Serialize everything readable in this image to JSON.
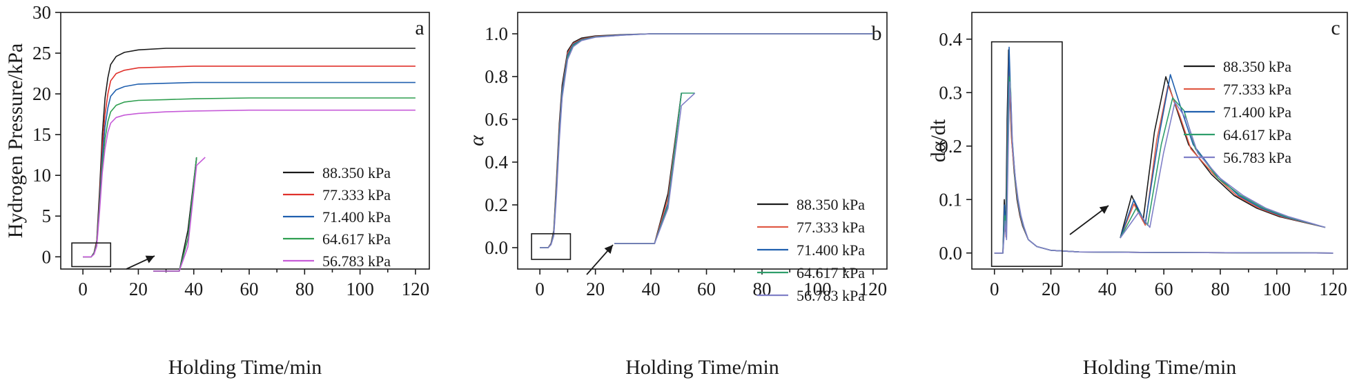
{
  "chart_data": [
    {
      "type": "line",
      "panel_label": "a",
      "title": "",
      "xlabel": "Holding Time/min",
      "ylabel": "Hydrogen Pressure/kPa",
      "xlim": [
        -8,
        125
      ],
      "ylim": [
        -1.5,
        30
      ],
      "xticks": [
        "0",
        "20",
        "40",
        "60",
        "80",
        "100",
        "120"
      ],
      "yticks": [
        "0",
        "5",
        "10",
        "15",
        "20",
        "25",
        "30"
      ],
      "grid": false,
      "legend_position": "lower-right",
      "inset": {
        "box_x": [
          -4,
          10
        ],
        "box_y": [
          -1.2,
          1.7
        ],
        "label": "zoomed view of early stage"
      },
      "series": [
        {
          "name": "88.350 kPa",
          "color": "#1a1a1a",
          "x": [
            0,
            3,
            4,
            5,
            6,
            7,
            8,
            9,
            10,
            12,
            15,
            20,
            30,
            40,
            60,
            80,
            100,
            120
          ],
          "y": [
            0,
            0,
            0.5,
            2,
            8,
            15,
            19.5,
            22,
            23.6,
            24.6,
            25.1,
            25.4,
            25.6,
            25.6,
            25.6,
            25.6,
            25.6,
            25.6
          ]
        },
        {
          "name": "77.333 kPa",
          "color": "#e0312b",
          "x": [
            0,
            3,
            4,
            5,
            6,
            7,
            8,
            9,
            10,
            12,
            15,
            20,
            30,
            40,
            60,
            80,
            100,
            120
          ],
          "y": [
            0,
            0,
            0.4,
            1.8,
            7,
            13.5,
            17.5,
            20,
            21.6,
            22.5,
            22.9,
            23.2,
            23.3,
            23.4,
            23.4,
            23.4,
            23.4,
            23.4
          ]
        },
        {
          "name": "71.400 kPa",
          "color": "#1f5fae",
          "x": [
            0,
            3,
            4,
            5,
            6,
            7,
            8,
            9,
            10,
            12,
            15,
            20,
            30,
            40,
            60,
            80,
            100,
            120
          ],
          "y": [
            0,
            0,
            0.4,
            1.6,
            6.5,
            12.3,
            16,
            18.3,
            19.7,
            20.5,
            20.9,
            21.2,
            21.3,
            21.4,
            21.4,
            21.4,
            21.4,
            21.4
          ]
        },
        {
          "name": "64.617 kPa",
          "color": "#2e9e4f",
          "x": [
            0,
            3,
            4,
            5,
            6,
            7,
            8,
            9,
            10,
            12,
            15,
            20,
            30,
            40,
            60,
            80,
            100,
            120
          ],
          "y": [
            0,
            0,
            0.4,
            1.5,
            6,
            11.2,
            14.5,
            16.6,
            17.8,
            18.6,
            19,
            19.2,
            19.3,
            19.4,
            19.5,
            19.5,
            19.5,
            19.5
          ]
        },
        {
          "name": "56.783 kPa",
          "color": "#c65bd8",
          "x": [
            0,
            3,
            4,
            5,
            6,
            7,
            8,
            9,
            10,
            12,
            15,
            20,
            30,
            40,
            60,
            80,
            100,
            120
          ],
          "y": [
            0,
            0,
            0.3,
            1.3,
            5.5,
            10.3,
            13.3,
            15.3,
            16.4,
            17.1,
            17.4,
            17.6,
            17.8,
            17.9,
            18,
            18,
            18,
            18
          ]
        }
      ]
    },
    {
      "type": "line",
      "panel_label": "b",
      "title": "",
      "xlabel": "Holding Time/min",
      "ylabel": "α",
      "xlim": [
        -8,
        125
      ],
      "ylim": [
        -0.1,
        1.1
      ],
      "xticks": [
        "0",
        "20",
        "40",
        "60",
        "80",
        "100",
        "120"
      ],
      "yticks": [
        "0.0",
        "0.2",
        "0.4",
        "0.6",
        "0.8",
        "1.0"
      ],
      "grid": false,
      "legend_position": "lower-right",
      "inset": {
        "box_x": [
          -3,
          11
        ],
        "box_y": [
          -0.055,
          0.065
        ],
        "label": "zoomed view of early stage"
      },
      "series": [
        {
          "name": "88.350 kPa",
          "color": "#1a1a1a",
          "x": [
            0,
            3,
            4,
            5,
            6,
            7,
            8,
            10,
            12,
            15,
            20,
            30,
            40,
            60,
            80,
            100,
            120
          ],
          "y": [
            0,
            0,
            0.02,
            0.08,
            0.32,
            0.58,
            0.76,
            0.92,
            0.96,
            0.98,
            0.99,
            0.996,
            1,
            1,
            1,
            1,
            1
          ]
        },
        {
          "name": "77.333 kPa",
          "color": "#e05a45",
          "x": [
            0,
            3,
            4,
            5,
            6,
            7,
            8,
            10,
            12,
            15,
            20,
            30,
            40,
            60,
            80,
            100,
            120
          ],
          "y": [
            0,
            0,
            0.018,
            0.07,
            0.3,
            0.56,
            0.74,
            0.91,
            0.955,
            0.975,
            0.988,
            0.995,
            1,
            1,
            1,
            1,
            1
          ]
        },
        {
          "name": "71.400 kPa",
          "color": "#1f5fae",
          "x": [
            0,
            3,
            4,
            5,
            6,
            7,
            8,
            10,
            12,
            15,
            20,
            30,
            40,
            60,
            80,
            100,
            120
          ],
          "y": [
            0,
            0,
            0.016,
            0.065,
            0.28,
            0.54,
            0.73,
            0.9,
            0.95,
            0.972,
            0.986,
            0.995,
            1,
            1,
            1,
            1,
            1
          ]
        },
        {
          "name": "64.617 kPa",
          "color": "#2e9e6b",
          "x": [
            0,
            3,
            4,
            5,
            6,
            7,
            8,
            10,
            12,
            15,
            20,
            30,
            40,
            60,
            80,
            100,
            120
          ],
          "y": [
            0,
            0,
            0.015,
            0.06,
            0.27,
            0.52,
            0.71,
            0.89,
            0.945,
            0.97,
            0.985,
            0.994,
            1,
            1,
            1,
            1,
            1
          ]
        },
        {
          "name": "56.783 kPa",
          "color": "#7f7fc7",
          "x": [
            0,
            3,
            4,
            5,
            6,
            7,
            8,
            10,
            12,
            15,
            20,
            30,
            40,
            60,
            80,
            100,
            120
          ],
          "y": [
            0,
            0,
            0.014,
            0.055,
            0.25,
            0.5,
            0.7,
            0.88,
            0.94,
            0.968,
            0.984,
            0.994,
            1,
            1,
            1,
            1,
            1
          ]
        }
      ]
    },
    {
      "type": "line",
      "panel_label": "c",
      "title": "",
      "xlabel": "Holding Time/min",
      "ylabel": "dα/dt",
      "xlim": [
        -8,
        125
      ],
      "ylim": [
        -0.03,
        0.45
      ],
      "xticks": [
        "0",
        "20",
        "40",
        "60",
        "80",
        "100",
        "120"
      ],
      "yticks": [
        "0.0",
        "0.1",
        "0.2",
        "0.3",
        "0.4"
      ],
      "grid": false,
      "legend_position": "upper-right",
      "inset": {
        "box_x": [
          -1,
          24
        ],
        "box_y": [
          -0.025,
          0.395
        ],
        "label": "zoomed view of peak region"
      },
      "series": [
        {
          "name": "88.350 kPa",
          "color": "#1a1a1a",
          "x": [
            0,
            3,
            3.5,
            4,
            4.5,
            5,
            5.5,
            6,
            7,
            8,
            9,
            10,
            12,
            15,
            20,
            30,
            60,
            120
          ],
          "y": [
            0,
            0,
            0.1,
            0.04,
            0.25,
            0.38,
            0.3,
            0.22,
            0.15,
            0.1,
            0.07,
            0.05,
            0.025,
            0.012,
            0.005,
            0.002,
            0.001,
            0
          ]
        },
        {
          "name": "77.333 kPa",
          "color": "#e05a45",
          "x": [
            0,
            3,
            3.6,
            4.1,
            4.6,
            5.1,
            5.6,
            6.1,
            7.1,
            8.1,
            9.1,
            10.1,
            12,
            15,
            20,
            30,
            60,
            120
          ],
          "y": [
            0,
            0,
            0.08,
            0.03,
            0.23,
            0.36,
            0.29,
            0.21,
            0.15,
            0.1,
            0.07,
            0.05,
            0.025,
            0.012,
            0.005,
            0.002,
            0.001,
            0
          ]
        },
        {
          "name": "71.400 kPa",
          "color": "#1f5fae",
          "x": [
            0,
            3,
            3.6,
            4.1,
            4.7,
            5.2,
            5.7,
            6.2,
            7.2,
            8.2,
            9.2,
            10.2,
            12,
            15,
            20,
            30,
            60,
            120
          ],
          "y": [
            0,
            0,
            0.09,
            0.035,
            0.24,
            0.385,
            0.3,
            0.22,
            0.15,
            0.1,
            0.07,
            0.05,
            0.025,
            0.012,
            0.005,
            0.002,
            0.001,
            0
          ]
        },
        {
          "name": "64.617 kPa",
          "color": "#2e9e6b",
          "x": [
            0,
            3,
            3.7,
            4.2,
            4.8,
            5.3,
            5.8,
            6.3,
            7.3,
            8.3,
            9.3,
            10.3,
            12,
            15,
            20,
            30,
            60,
            120
          ],
          "y": [
            0,
            0,
            0.07,
            0.03,
            0.22,
            0.33,
            0.3,
            0.21,
            0.14,
            0.1,
            0.07,
            0.05,
            0.025,
            0.012,
            0.005,
            0.002,
            0.001,
            0
          ]
        },
        {
          "name": "56.783 kPa",
          "color": "#7f7fc7",
          "x": [
            0,
            3,
            3.8,
            4.3,
            4.9,
            5.4,
            5.9,
            6.4,
            7.4,
            8.4,
            9.4,
            10.4,
            12,
            15,
            20,
            30,
            60,
            120
          ],
          "y": [
            0,
            0,
            0.06,
            0.025,
            0.2,
            0.32,
            0.28,
            0.2,
            0.14,
            0.1,
            0.07,
            0.05,
            0.025,
            0.012,
            0.005,
            0.002,
            0.001,
            0
          ]
        }
      ]
    }
  ]
}
